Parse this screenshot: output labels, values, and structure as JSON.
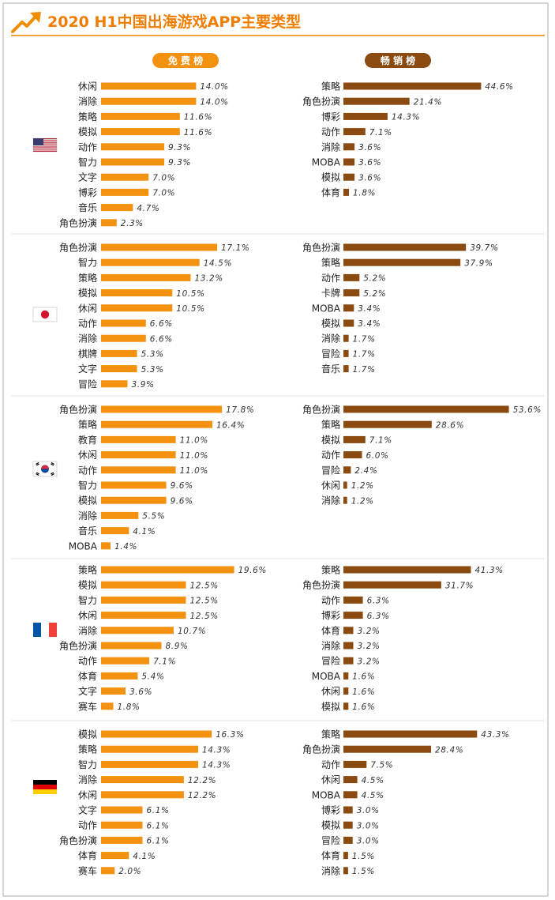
{
  "header": {
    "title": "2020 H1中国出海游戏APP主要类型",
    "accent_color": "#f08c00",
    "title_color": "#ee7d00"
  },
  "columns": {
    "free_label": "免 费 榜",
    "grossing_label": "畅 销 榜",
    "free_color": "#f39111",
    "grossing_color": "#8a4a10"
  },
  "regions": [
    {
      "flag": "us-flag-icon"
    },
    {
      "flag": "japan-flag-icon"
    },
    {
      "flag": "korea-flag-icon"
    },
    {
      "flag": "france-flag-icon"
    },
    {
      "flag": "germany-flag-icon"
    }
  ],
  "chart_data": [
    {
      "type": "bar",
      "orientation": "horizontal",
      "panel": "free",
      "region": "us-flag-icon",
      "categories": [
        "休闲",
        "消除",
        "策略",
        "模拟",
        "动作",
        "智力",
        "文字",
        "博彩",
        "音乐",
        "角色扮演"
      ],
      "values": [
        14.0,
        14.0,
        11.6,
        11.6,
        9.3,
        9.3,
        7.0,
        7.0,
        4.7,
        2.3
      ],
      "labels": [
        "14.0%",
        "14.0%",
        "11.6%",
        "11.6%",
        "9.3%",
        "9.3%",
        "7.0%",
        "7.0%",
        "4.7%",
        "2.3%"
      ],
      "xlim": [
        0,
        20
      ]
    },
    {
      "type": "bar",
      "orientation": "horizontal",
      "panel": "grossing",
      "region": "us-flag-icon",
      "categories": [
        "策略",
        "角色扮演",
        "博彩",
        "动作",
        "消除",
        "MOBA",
        "模拟",
        "体育"
      ],
      "values": [
        44.6,
        21.4,
        14.3,
        7.1,
        3.6,
        3.6,
        3.6,
        1.8
      ],
      "labels": [
        "44.6%",
        "21.4%",
        "14.3%",
        "7.1%",
        "3.6%",
        "3.6%",
        "3.6%",
        "1.8%"
      ],
      "xlim": [
        0,
        55
      ]
    },
    {
      "type": "bar",
      "orientation": "horizontal",
      "panel": "free",
      "region": "japan-flag-icon",
      "categories": [
        "角色扮演",
        "智力",
        "策略",
        "模拟",
        "休闲",
        "动作",
        "消除",
        "棋牌",
        "文字",
        "冒险"
      ],
      "values": [
        17.1,
        14.5,
        13.2,
        10.5,
        10.5,
        6.6,
        6.6,
        5.3,
        5.3,
        3.9
      ],
      "labels": [
        "17.1%",
        "14.5%",
        "13.2%",
        "10.5%",
        "10.5%",
        "6.6%",
        "6.6%",
        "5.3%",
        "5.3%",
        "3.9%"
      ],
      "xlim": [
        0,
        20
      ]
    },
    {
      "type": "bar",
      "orientation": "horizontal",
      "panel": "grossing",
      "region": "japan-flag-icon",
      "categories": [
        "角色扮演",
        "策略",
        "动作",
        "卡牌",
        "MOBA",
        "模拟",
        "消除",
        "冒险",
        "音乐"
      ],
      "values": [
        39.7,
        37.9,
        5.2,
        5.2,
        3.4,
        3.4,
        1.7,
        1.7,
        1.7
      ],
      "labels": [
        "39.7%",
        "37.9%",
        "5.2%",
        "5.2%",
        "3.4%",
        "3.4%",
        "1.7%",
        "1.7%",
        "1.7%"
      ],
      "xlim": [
        0,
        55
      ]
    },
    {
      "type": "bar",
      "orientation": "horizontal",
      "panel": "free",
      "region": "korea-flag-icon",
      "categories": [
        "角色扮演",
        "策略",
        "教育",
        "休闲",
        "动作",
        "智力",
        "模拟",
        "消除",
        "音乐",
        "MOBA"
      ],
      "values": [
        17.8,
        16.4,
        11.0,
        11.0,
        11.0,
        9.6,
        9.6,
        5.5,
        4.1,
        1.4
      ],
      "labels": [
        "17.8%",
        "16.4%",
        "11.0%",
        "11.0%",
        "11.0%",
        "9.6%",
        "9.6%",
        "5.5%",
        "4.1%",
        "1.4%"
      ],
      "xlim": [
        0,
        20
      ]
    },
    {
      "type": "bar",
      "orientation": "horizontal",
      "panel": "grossing",
      "region": "korea-flag-icon",
      "categories": [
        "角色扮演",
        "策略",
        "模拟",
        "动作",
        "冒险",
        "休闲",
        "消除"
      ],
      "values": [
        53.6,
        28.6,
        7.1,
        6.0,
        2.4,
        1.2,
        1.2
      ],
      "labels": [
        "53.6%",
        "28.6%",
        "7.1%",
        "6.0%",
        "2.4%",
        "1.2%",
        "1.2%"
      ],
      "xlim": [
        0,
        55
      ]
    },
    {
      "type": "bar",
      "orientation": "horizontal",
      "panel": "free",
      "region": "france-flag-icon",
      "categories": [
        "策略",
        "模拟",
        "智力",
        "休闲",
        "消除",
        "角色扮演",
        "动作",
        "体育",
        "文字",
        "赛车"
      ],
      "values": [
        19.6,
        12.5,
        12.5,
        12.5,
        10.7,
        8.9,
        7.1,
        5.4,
        3.6,
        1.8
      ],
      "labels": [
        "19.6%",
        "12.5%",
        "12.5%",
        "12.5%",
        "10.7%",
        "8.9%",
        "7.1%",
        "5.4%",
        "3.6%",
        "1.8%"
      ],
      "xlim": [
        0,
        20
      ]
    },
    {
      "type": "bar",
      "orientation": "horizontal",
      "panel": "grossing",
      "region": "france-flag-icon",
      "categories": [
        "策略",
        "角色扮演",
        "动作",
        "博彩",
        "体育",
        "消除",
        "冒险",
        "MOBA",
        "休闲",
        "模拟"
      ],
      "values": [
        41.3,
        31.7,
        6.3,
        6.3,
        3.2,
        3.2,
        3.2,
        1.6,
        1.6,
        1.6
      ],
      "labels": [
        "41.3%",
        "31.7%",
        "6.3%",
        "6.3%",
        "3.2%",
        "3.2%",
        "3.2%",
        "1.6%",
        "1.6%",
        "1.6%"
      ],
      "xlim": [
        0,
        55
      ]
    },
    {
      "type": "bar",
      "orientation": "horizontal",
      "panel": "free",
      "region": "germany-flag-icon",
      "categories": [
        "模拟",
        "策略",
        "智力",
        "消除",
        "休闲",
        "文字",
        "动作",
        "角色扮演",
        "体育",
        "赛车"
      ],
      "values": [
        16.3,
        14.3,
        14.3,
        12.2,
        12.2,
        6.1,
        6.1,
        6.1,
        4.1,
        2.0
      ],
      "labels": [
        "16.3%",
        "14.3%",
        "14.3%",
        "12.2%",
        "12.2%",
        "6.1%",
        "6.1%",
        "6.1%",
        "4.1%",
        "2.0%"
      ],
      "xlim": [
        0,
        20
      ]
    },
    {
      "type": "bar",
      "orientation": "horizontal",
      "panel": "grossing",
      "region": "germany-flag-icon",
      "categories": [
        "策略",
        "角色扮演",
        "动作",
        "休闲",
        "MOBA",
        "博彩",
        "模拟",
        "冒险",
        "体育",
        "消除"
      ],
      "values": [
        43.3,
        28.4,
        7.5,
        4.5,
        4.5,
        3.0,
        3.0,
        3.0,
        1.5,
        1.5
      ],
      "labels": [
        "43.3%",
        "28.4%",
        "7.5%",
        "4.5%",
        "4.5%",
        "3.0%",
        "3.0%",
        "3.0%",
        "1.5%",
        "1.5%"
      ],
      "xlim": [
        0,
        55
      ]
    }
  ]
}
